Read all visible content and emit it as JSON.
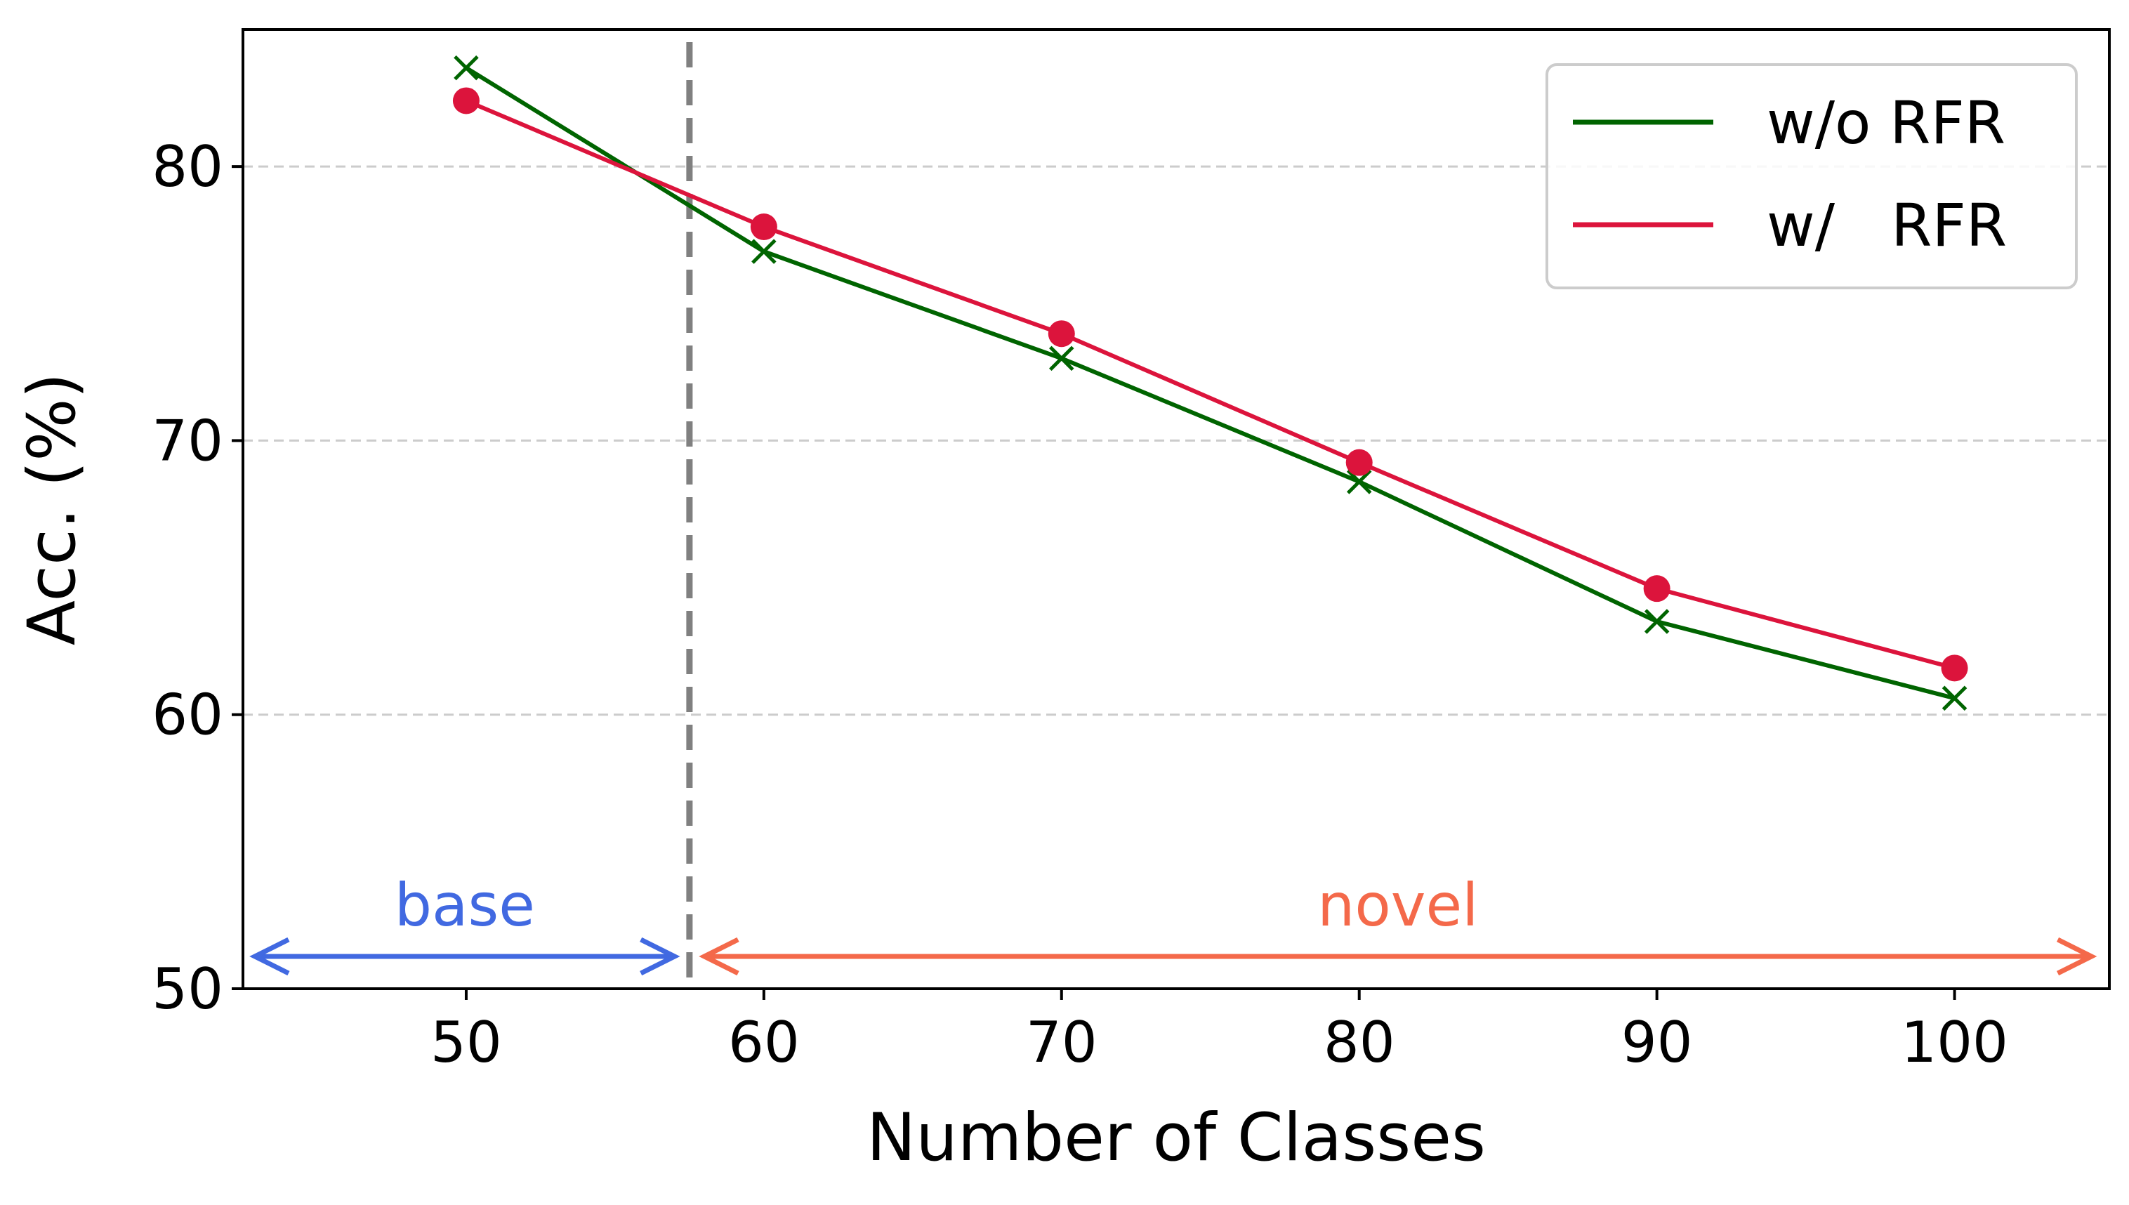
{
  "chart_data": {
    "type": "line",
    "title": "",
    "xlabel": "Number of Classes",
    "ylabel": "Acc. (%)",
    "xlim": [
      42.5,
      105.2
    ],
    "ylim": [
      50,
      85
    ],
    "x_ticks": [
      "50",
      "60",
      "70",
      "80",
      "90",
      "100"
    ],
    "y_ticks": [
      "50",
      "60",
      "70",
      "80"
    ],
    "grid": "horizontal-dashed",
    "legend_position": "top-right",
    "x": [
      50,
      60,
      70,
      80,
      90,
      100
    ],
    "series": [
      {
        "name": "w/o RFR",
        "values": [
          83.6,
          76.9,
          73.0,
          68.5,
          63.4,
          60.6
        ],
        "color": "#006400",
        "marker": "x"
      },
      {
        "name": "w/   RFR",
        "values": [
          82.4,
          77.8,
          73.9,
          69.2,
          64.6,
          61.7
        ],
        "color": "#dc143c",
        "marker": "o"
      }
    ],
    "boundary": {
      "x": 57.5,
      "style": "dashed",
      "color": "#808080"
    },
    "regions": [
      {
        "label": "base",
        "from": 42.9,
        "to": 57.0,
        "color": "#4169e1"
      },
      {
        "label": "novel",
        "from": 58.0,
        "to": 104.6,
        "color": "#f4694a"
      }
    ]
  }
}
